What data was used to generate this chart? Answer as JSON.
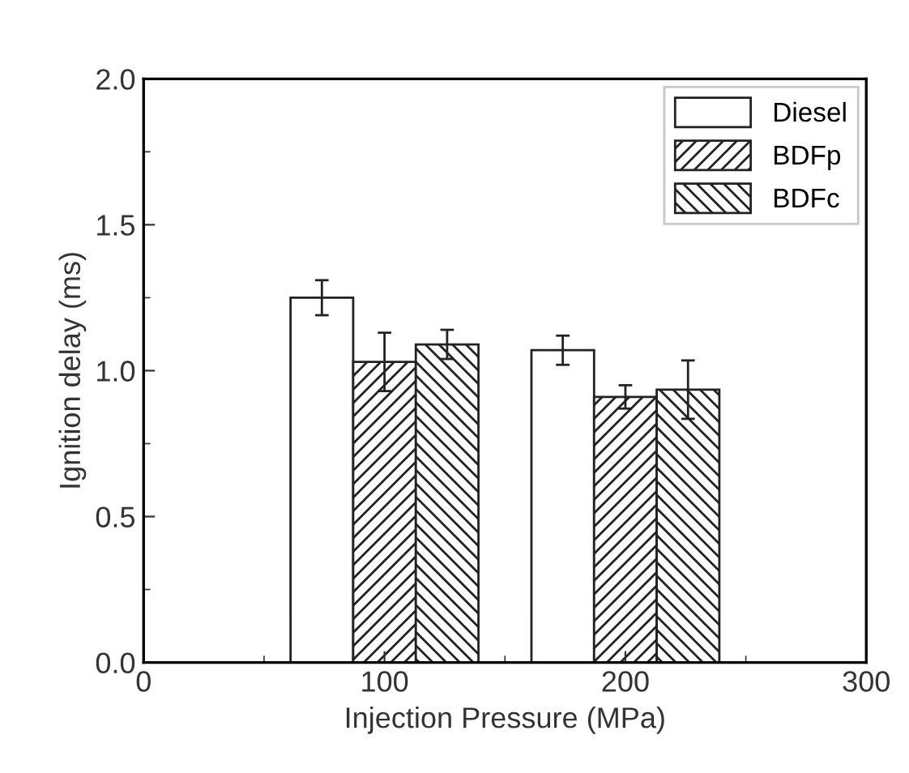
{
  "chart_data": {
    "type": "bar",
    "xlabel": "Injection Pressure (MPa)",
    "ylabel": "Ignition delay (ms)",
    "x": [
      100,
      200
    ],
    "series": [
      {
        "name": "Diesel",
        "color": "#ffffff",
        "values": [
          1.25,
          1.07
        ],
        "errors": [
          0.06,
          0.05
        ]
      },
      {
        "name": "BDFp",
        "color": "#222222",
        "values": [
          1.03,
          0.91
        ],
        "errors": [
          0.1,
          0.04
        ]
      },
      {
        "name": "BDFc",
        "color": "#222222",
        "values": [
          1.09,
          0.935
        ],
        "errors": [
          0.05,
          0.1
        ]
      }
    ],
    "xlim": [
      0,
      300
    ],
    "xticks": [
      0,
      100,
      200,
      300
    ],
    "ylim": [
      0,
      2.0
    ],
    "yticks": [
      {
        "value": 0,
        "label": "0.0"
      },
      {
        "value": 0.5,
        "label": "0.5"
      },
      {
        "value": 1.0,
        "label": "1.0"
      },
      {
        "value": 1.5,
        "label": "1.5"
      },
      {
        "value": 2.0,
        "label": "2.0"
      }
    ],
    "legend": "top right",
    "grid": false
  }
}
